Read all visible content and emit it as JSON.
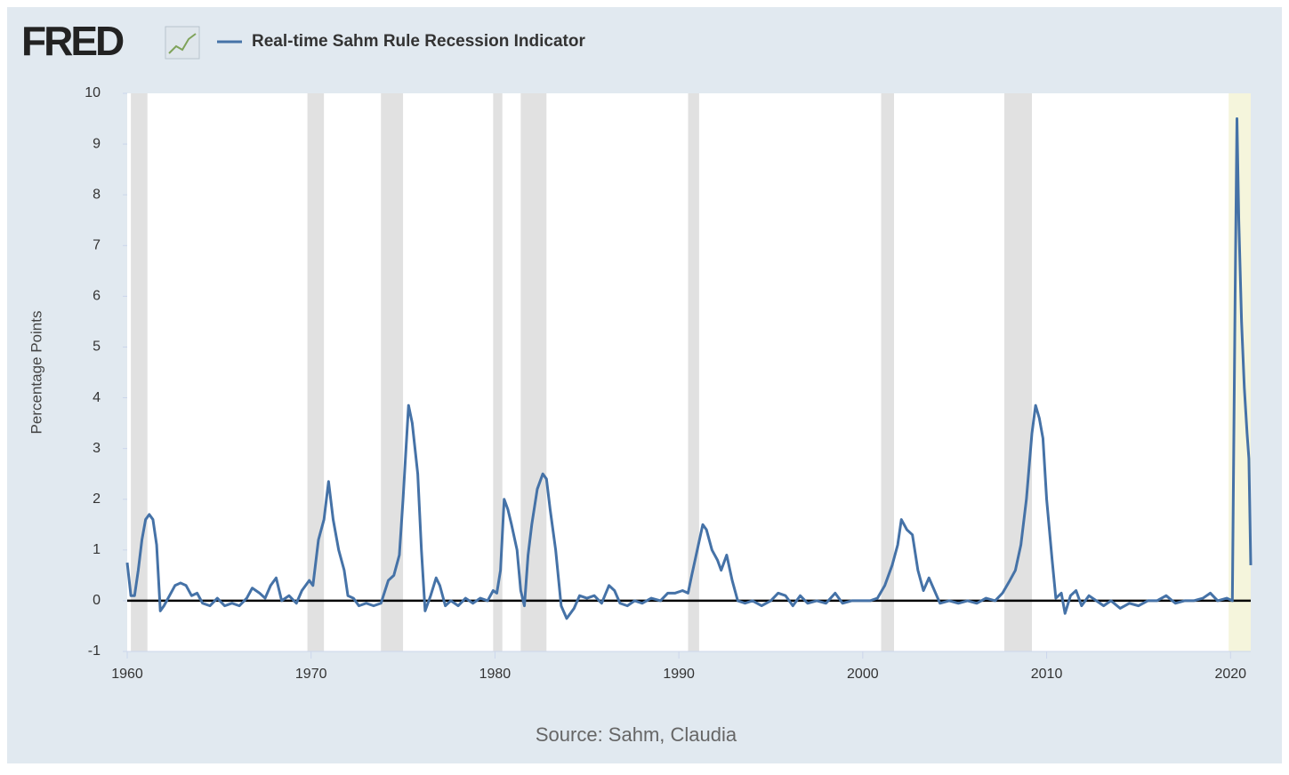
{
  "logo": "FRED",
  "chart_data": {
    "type": "line",
    "ylabel": "Percentage Points",
    "source": "Source: Sahm, Claudia",
    "xlim": [
      1960,
      2021.1
    ],
    "xticks": [
      1960,
      1970,
      1980,
      1990,
      2000,
      2010,
      2020
    ],
    "ylim": [
      -1,
      10
    ],
    "yticks": [
      -1,
      0,
      1,
      2,
      3,
      4,
      5,
      6,
      7,
      8,
      9,
      10
    ],
    "reference_line": 0,
    "shaded_periods": [
      {
        "start": 1960.2,
        "end": 1961.1,
        "color": "#e1e1e1"
      },
      {
        "start": 1969.8,
        "end": 1970.7,
        "color": "#e1e1e1"
      },
      {
        "start": 1973.8,
        "end": 1975.0,
        "color": "#e1e1e1"
      },
      {
        "start": 1979.9,
        "end": 1980.4,
        "color": "#e1e1e1"
      },
      {
        "start": 1981.4,
        "end": 1982.8,
        "color": "#e1e1e1"
      },
      {
        "start": 1990.5,
        "end": 1991.1,
        "color": "#e1e1e1"
      },
      {
        "start": 2001.0,
        "end": 2001.7,
        "color": "#e1e1e1"
      },
      {
        "start": 2007.7,
        "end": 2009.2,
        "color": "#e1e1e1"
      },
      {
        "start": 2019.9,
        "end": 2021.1,
        "color": "#f5f5dc"
      }
    ],
    "x": [
      1960,
      1960.2,
      1960.4,
      1960.6,
      1960.8,
      1961,
      1961.2,
      1961.4,
      1961.6,
      1961.8,
      1962,
      1962.3,
      1962.6,
      1962.9,
      1963.2,
      1963.5,
      1963.8,
      1964.1,
      1964.5,
      1964.9,
      1965.3,
      1965.7,
      1966.1,
      1966.5,
      1966.8,
      1967.2,
      1967.5,
      1967.8,
      1968.1,
      1968.4,
      1968.8,
      1969.2,
      1969.5,
      1969.9,
      1970.1,
      1970.4,
      1970.7,
      1970.95,
      1971.2,
      1971.5,
      1971.8,
      1972,
      1972.3,
      1972.6,
      1973,
      1973.4,
      1973.8,
      1974.2,
      1974.5,
      1974.8,
      1975,
      1975.3,
      1975.5,
      1975.8,
      1976,
      1976.2,
      1976.5,
      1976.8,
      1977,
      1977.3,
      1977.6,
      1978,
      1978.4,
      1978.8,
      1979.2,
      1979.6,
      1979.9,
      1980.1,
      1980.3,
      1980.5,
      1980.7,
      1980.9,
      1981.2,
      1981.4,
      1981.6,
      1981.8,
      1982,
      1982.3,
      1982.6,
      1982.8,
      1983,
      1983.3,
      1983.6,
      1983.9,
      1984.3,
      1984.6,
      1985,
      1985.4,
      1985.8,
      1986.2,
      1986.5,
      1986.8,
      1987.2,
      1987.6,
      1988,
      1988.5,
      1989,
      1989.4,
      1989.8,
      1990.2,
      1990.5,
      1990.7,
      1991,
      1991.3,
      1991.5,
      1991.8,
      1992.1,
      1992.3,
      1992.6,
      1992.9,
      1993.2,
      1993.6,
      1994,
      1994.5,
      1995,
      1995.4,
      1995.8,
      1996.2,
      1996.6,
      1997,
      1997.5,
      1998,
      1998.5,
      1998.9,
      1999.4,
      1999.9,
      2000.4,
      2000.8,
      2001.2,
      2001.6,
      2001.9,
      2002.1,
      2002.4,
      2002.7,
      2003,
      2003.3,
      2003.6,
      2003.9,
      2004.2,
      2004.7,
      2005.2,
      2005.7,
      2006.2,
      2006.7,
      2007.2,
      2007.6,
      2008,
      2008.3,
      2008.6,
      2008.9,
      2009.2,
      2009.4,
      2009.6,
      2009.8,
      2010,
      2010.3,
      2010.5,
      2010.8,
      2011,
      2011.3,
      2011.6,
      2011.9,
      2012.3,
      2012.7,
      2013.1,
      2013.5,
      2014,
      2014.5,
      2015,
      2015.5,
      2016,
      2016.5,
      2017,
      2017.5,
      2018,
      2018.5,
      2018.9,
      2019.3,
      2019.8,
      2020.1,
      2020.25,
      2020.35,
      2020.45,
      2020.6,
      2020.75,
      2020.9,
      2021,
      2021.1
    ],
    "series": [
      {
        "name": "Real-time Sahm Rule Recession Indicator",
        "color": "#4572a7",
        "values": [
          0.75,
          0.1,
          0.1,
          0.6,
          1.2,
          1.6,
          1.7,
          1.6,
          1.1,
          -0.2,
          -0.1,
          0.1,
          0.3,
          0.35,
          0.3,
          0.1,
          0.15,
          -0.05,
          -0.1,
          0.05,
          -0.1,
          -0.05,
          -0.1,
          0.05,
          0.25,
          0.15,
          0.05,
          0.3,
          0.45,
          0,
          0.1,
          -0.05,
          0.2,
          0.4,
          0.3,
          1.2,
          1.6,
          2.35,
          1.6,
          1,
          0.6,
          0.1,
          0.05,
          -0.1,
          -0.05,
          -0.1,
          -0.05,
          0.4,
          0.5,
          0.9,
          2,
          3.85,
          3.5,
          2.5,
          1,
          -0.2,
          0.1,
          0.45,
          0.3,
          -0.1,
          0,
          -0.1,
          0.05,
          -0.05,
          0.05,
          0,
          0.2,
          0.15,
          0.6,
          2,
          1.8,
          1.5,
          1,
          0.2,
          -0.1,
          0.9,
          1.5,
          2.2,
          2.5,
          2.4,
          1.8,
          1,
          -0.1,
          -0.35,
          -0.15,
          0.1,
          0.05,
          0.1,
          -0.05,
          0.3,
          0.2,
          -0.05,
          -0.1,
          0,
          -0.05,
          0.05,
          0,
          0.15,
          0.15,
          0.2,
          0.15,
          0.5,
          1,
          1.5,
          1.4,
          1,
          0.8,
          0.6,
          0.9,
          0.4,
          0,
          -0.05,
          0,
          -0.1,
          0,
          0.15,
          0.1,
          -0.1,
          0.1,
          -0.05,
          0,
          -0.05,
          0.15,
          -0.05,
          0,
          0,
          0,
          0.05,
          0.3,
          0.7,
          1.1,
          1.6,
          1.4,
          1.3,
          0.6,
          0.2,
          0.45,
          0.2,
          -0.05,
          0,
          -0.05,
          0,
          -0.05,
          0.05,
          0,
          0.15,
          0.4,
          0.6,
          1.1,
          2,
          3.3,
          3.85,
          3.6,
          3.2,
          2,
          0.8,
          0.05,
          0.15,
          -0.25,
          0.1,
          0.2,
          -0.1,
          0.1,
          0,
          -0.1,
          0,
          -0.15,
          -0.05,
          -0.1,
          0,
          0,
          0.1,
          -0.05,
          0,
          0,
          0.05,
          0.15,
          0,
          0.05,
          0,
          6,
          9.5,
          7.5,
          5.5,
          4.2,
          3.3,
          2.8,
          0.7
        ]
      }
    ]
  }
}
